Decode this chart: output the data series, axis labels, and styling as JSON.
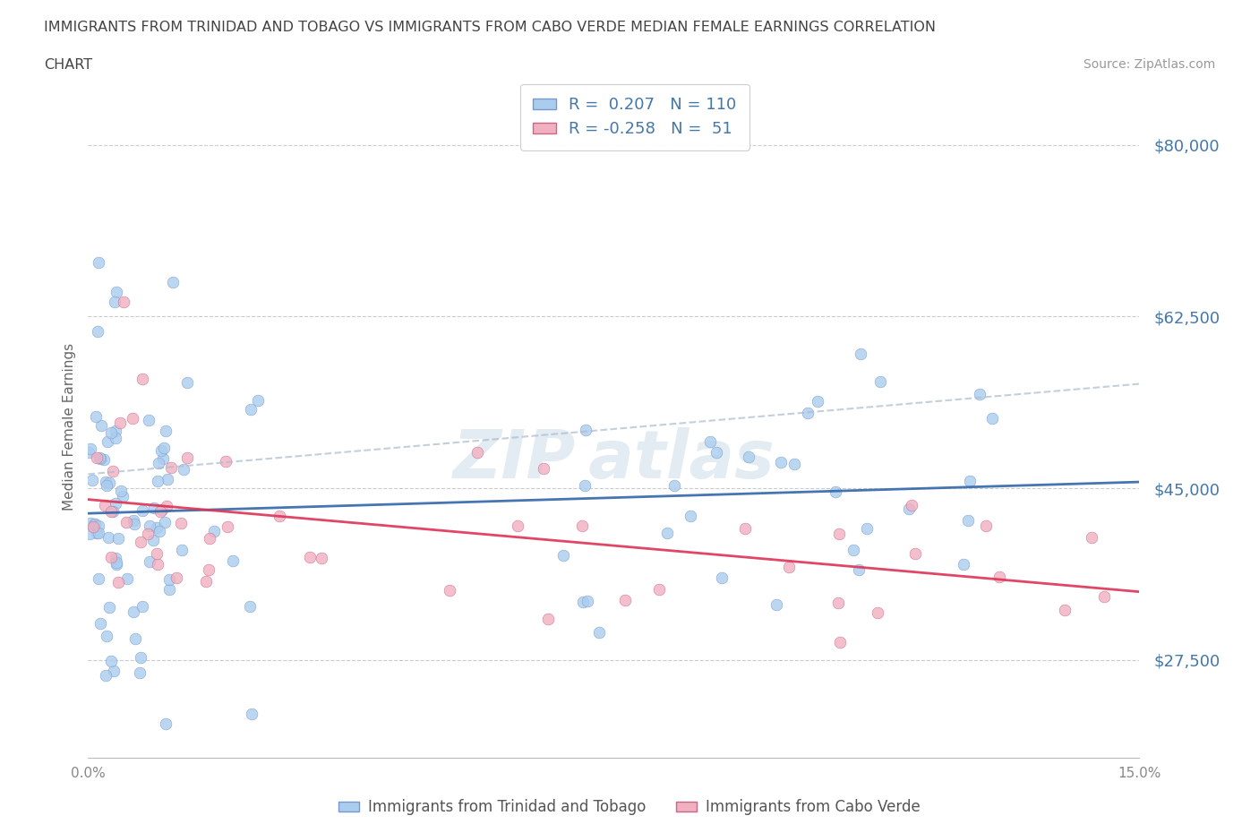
{
  "title_line1": "IMMIGRANTS FROM TRINIDAD AND TOBAGO VS IMMIGRANTS FROM CABO VERDE MEDIAN FEMALE EARNINGS CORRELATION",
  "title_line2": "CHART",
  "source": "Source: ZipAtlas.com",
  "ylabel": "Median Female Earnings",
  "xlim": [
    0.0,
    0.15
  ],
  "ylim": [
    17500,
    85000
  ],
  "yticks": [
    27500,
    45000,
    62500,
    80000
  ],
  "ytick_labels": [
    "$27,500",
    "$45,000",
    "$62,500",
    "$80,000"
  ],
  "xticks": [
    0.0,
    0.03,
    0.06,
    0.09,
    0.12,
    0.15
  ],
  "xtick_labels": [
    "0.0%",
    "",
    "",
    "",
    "",
    "15.0%"
  ],
  "series1_name": "Immigrants from Trinidad and Tobago",
  "series1_color": "#aaccee",
  "series1_edge": "#7799cc",
  "series1_R": 0.207,
  "series1_N": 110,
  "series2_name": "Immigrants from Cabo Verde",
  "series2_color": "#f0b0c0",
  "series2_edge": "#cc6688",
  "series2_R": -0.258,
  "series2_N": 51,
  "trend1_color": "#3366aa",
  "trend2_color": "#dd3355",
  "trend1_dashed_color": "#aabbcc",
  "background_color": "#ffffff",
  "grid_color": "#cccccc",
  "axis_label_color": "#4477aa",
  "title_color": "#555555",
  "legend_label_color": "#4477aa"
}
